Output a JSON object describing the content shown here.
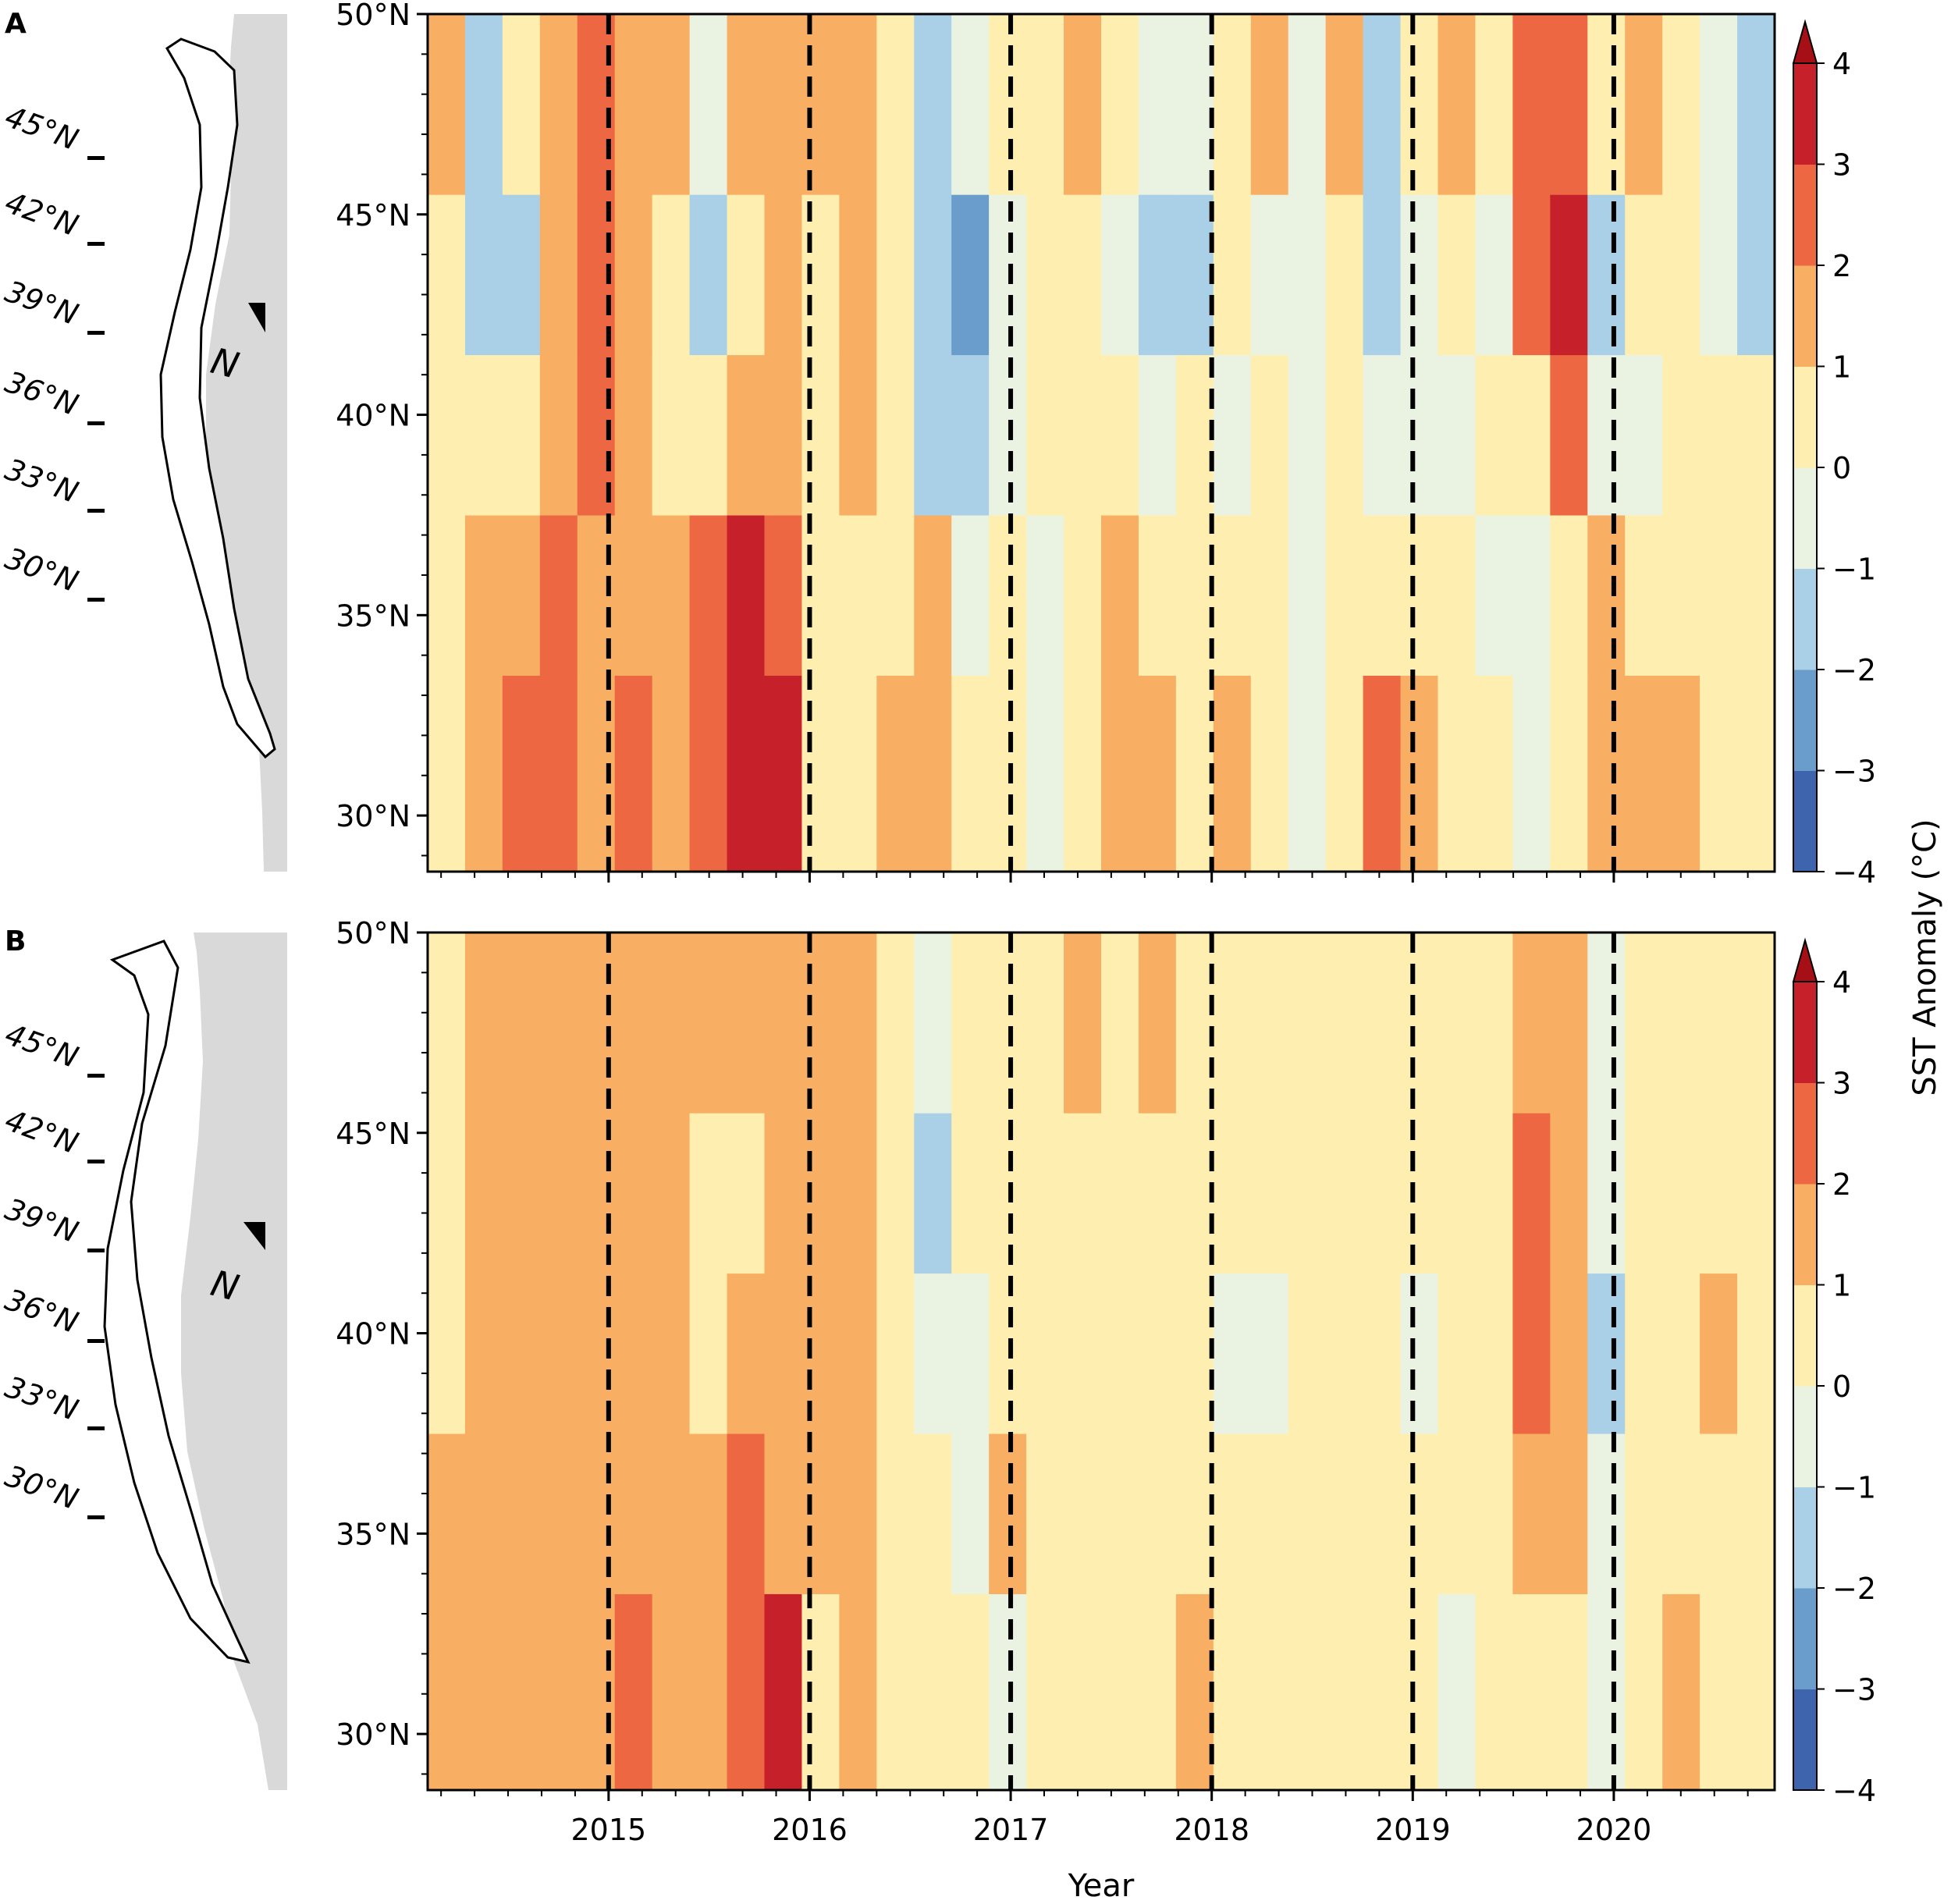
{
  "chart_data": {
    "type": "heatmap",
    "title": "",
    "xlabel": "Year",
    "colorbar_label": "SST Anomaly (°C)",
    "x_ticks": [
      "2015",
      "2016",
      "2017",
      "2018",
      "2019",
      "2020"
    ],
    "x_tick_values": [
      2015,
      2016,
      2017,
      2018,
      2019,
      2020
    ],
    "xlim": [
      2014.1,
      2020.8
    ],
    "y_ticks": [
      "30°N",
      "35°N",
      "40°N",
      "45°N",
      "50°N"
    ],
    "y_tick_values": [
      30,
      35,
      40,
      45,
      50
    ],
    "ylim": [
      28.6,
      50
    ],
    "year_boundary_lines": [
      2015,
      2016,
      2017,
      2018,
      2019,
      2020
    ],
    "colorbar_levels": [
      -4,
      -3,
      -2,
      -1,
      0,
      1,
      2,
      3,
      4
    ],
    "colorbar_tick_labels": [
      "−4",
      "−3",
      "−2",
      "−1",
      "0",
      "1",
      "2",
      "3",
      "4"
    ],
    "colorbar_extend": "max",
    "colors": [
      "#3f64ae",
      "#6a9ccc",
      "#a9d0e6",
      "#eaf3e2",
      "#feefb0",
      "#f8ae63",
      "#ec6742",
      "#c6212a"
    ],
    "extend_color": "#a50f15",
    "map_lat_labels": [
      "45°N",
      "42°N",
      "39°N",
      "36°N",
      "33°N",
      "30°N"
    ],
    "map_north_label": "N",
    "panels": [
      {
        "label": "A",
        "bands": [
          {
            "lat": [
              28.6,
              33.5
            ],
            "values": [
              0.8,
              1.4,
              2.2,
              2.6,
              1.8,
              2.0,
              1.2,
              2.3,
              3.4,
              3.8,
              0.6,
              0.5,
              1.3,
              1.7,
              0.3,
              0.2,
              -0.3,
              0.4,
              1.8,
              1.4,
              0.9,
              1.2,
              0.6,
              -0.2,
              0.3,
              2.1,
              1.0,
              0.5,
              0.2,
              -0.5,
              0.4,
              1.0,
              1.6,
              1.4,
              0.7,
              0.5
            ]
          },
          {
            "lat": [
              33.5,
              37.5
            ],
            "values": [
              0.6,
              1.2,
              1.8,
              2.4,
              1.6,
              1.4,
              1.0,
              2.0,
              3.1,
              2.4,
              0.5,
              0.4,
              0.9,
              1.2,
              -0.3,
              0.1,
              -0.4,
              0.5,
              1.1,
              0.9,
              0.4,
              0.6,
              0.1,
              -0.5,
              0.2,
              0.8,
              0.4,
              0.2,
              -0.2,
              -0.3,
              0.6,
              1.2,
              0.4,
              0.3,
              0.8,
              0.5
            ]
          },
          {
            "lat": [
              37.5,
              41.5
            ],
            "values": [
              0.4,
              0.9,
              0.5,
              1.8,
              2.2,
              1.3,
              0.8,
              0.2,
              1.4,
              1.6,
              0.5,
              1.3,
              0.4,
              -1.2,
              -1.6,
              -0.6,
              0.3,
              0.6,
              0.1,
              -0.4,
              0.2,
              -0.3,
              0.4,
              -0.5,
              0.1,
              -0.2,
              -0.4,
              -0.3,
              0.2,
              0.4,
              2.4,
              -0.4,
              -0.2,
              0.6,
              0.3,
              0.4
            ]
          },
          {
            "lat": [
              41.5,
              45.5
            ],
            "values": [
              0.3,
              -1.4,
              -1.2,
              1.6,
              2.3,
              1.5,
              0.6,
              -1.4,
              0.3,
              1.2,
              0.8,
              1.6,
              0.6,
              -1.8,
              -2.2,
              -0.8,
              0.4,
              0.9,
              -0.6,
              -1.4,
              -1.2,
              0.4,
              -0.3,
              -0.5,
              0.5,
              -1.2,
              -0.6,
              0.4,
              -0.2,
              2.6,
              3.2,
              -1.3,
              0.2,
              0.4,
              -0.6,
              -1.6
            ]
          },
          {
            "lat": [
              45.5,
              50.0
            ],
            "values": [
              1.6,
              -1.2,
              0.2,
              1.4,
              2.5,
              1.4,
              1.3,
              -0.8,
              1.5,
              1.8,
              1.5,
              1.4,
              0.5,
              -1.4,
              -0.8,
              0.4,
              0.7,
              1.4,
              0.5,
              -1.0,
              -0.5,
              0.8,
              1.2,
              -0.4,
              1.3,
              -1.3,
              0.3,
              1.5,
              0.6,
              2.4,
              2.5,
              0.3,
              1.6,
              0.5,
              -0.3,
              -1.2
            ]
          }
        ]
      },
      {
        "label": "B",
        "bands": [
          {
            "lat": [
              28.6,
              33.5
            ],
            "values": [
              1.5,
              1.3,
              1.6,
              1.7,
              1.4,
              2.2,
              1.8,
              1.5,
              2.3,
              3.2,
              0.8,
              1.3,
              0.5,
              0.4,
              0.3,
              -0.3,
              0.5,
              0.4,
              0.6,
              0.4,
              1.4,
              0.5,
              0.6,
              0.2,
              0.4,
              0.6,
              0.3,
              -0.4,
              0.3,
              0.7,
              0.8,
              -0.3,
              0.6,
              1.2,
              0.4,
              0.6
            ]
          },
          {
            "lat": [
              33.5,
              37.5
            ],
            "values": [
              1.2,
              1.4,
              1.3,
              1.8,
              1.5,
              1.7,
              1.5,
              1.4,
              2.1,
              1.6,
              1.2,
              1.4,
              0.4,
              0.3,
              -0.3,
              1.6,
              0.3,
              0.4,
              0.5,
              0.2,
              0.6,
              0.5,
              0.4,
              0.3,
              0.5,
              0.2,
              0.4,
              0.2,
              0.5,
              1.4,
              1.2,
              -0.2,
              0.3,
              0.5,
              0.4,
              0.4
            ]
          },
          {
            "lat": [
              37.5,
              41.5
            ],
            "values": [
              0.6,
              1.2,
              1.3,
              1.5,
              1.4,
              1.6,
              1.3,
              0.6,
              1.2,
              1.4,
              1.4,
              1.3,
              0.3,
              -0.8,
              -0.3,
              0.5,
              0.3,
              0.4,
              0.4,
              0.2,
              0.3,
              -0.4,
              -0.3,
              0.4,
              0.5,
              0.3,
              -0.5,
              0.3,
              0.4,
              2.3,
              1.5,
              -1.1,
              0.5,
              0.4,
              1.2,
              0.5
            ]
          },
          {
            "lat": [
              41.5,
              45.5
            ],
            "values": [
              0.5,
              1.4,
              1.2,
              1.8,
              1.6,
              1.5,
              1.4,
              0.5,
              0.8,
              1.6,
              1.5,
              1.2,
              0.5,
              -1.3,
              0.4,
              0.3,
              0.5,
              0.4,
              0.6,
              0.3,
              0.5,
              0.4,
              0.3,
              0.5,
              0.4,
              0.5,
              0.3,
              0.5,
              0.6,
              2.2,
              1.6,
              -0.4,
              0.5,
              0.3,
              0.6,
              0.5
            ]
          },
          {
            "lat": [
              45.5,
              50.0
            ],
            "values": [
              0.6,
              1.4,
              1.6,
              1.9,
              1.5,
              1.6,
              1.7,
              1.5,
              1.6,
              1.8,
              1.6,
              1.4,
              0.5,
              -0.4,
              0.4,
              0.3,
              0.6,
              1.3,
              0.5,
              1.2,
              0.4,
              0.5,
              0.3,
              0.4,
              0.5,
              0.4,
              0.6,
              0.5,
              0.7,
              1.4,
              1.2,
              -0.3,
              0.4,
              0.5,
              0.3,
              0.6
            ]
          }
        ]
      }
    ]
  }
}
